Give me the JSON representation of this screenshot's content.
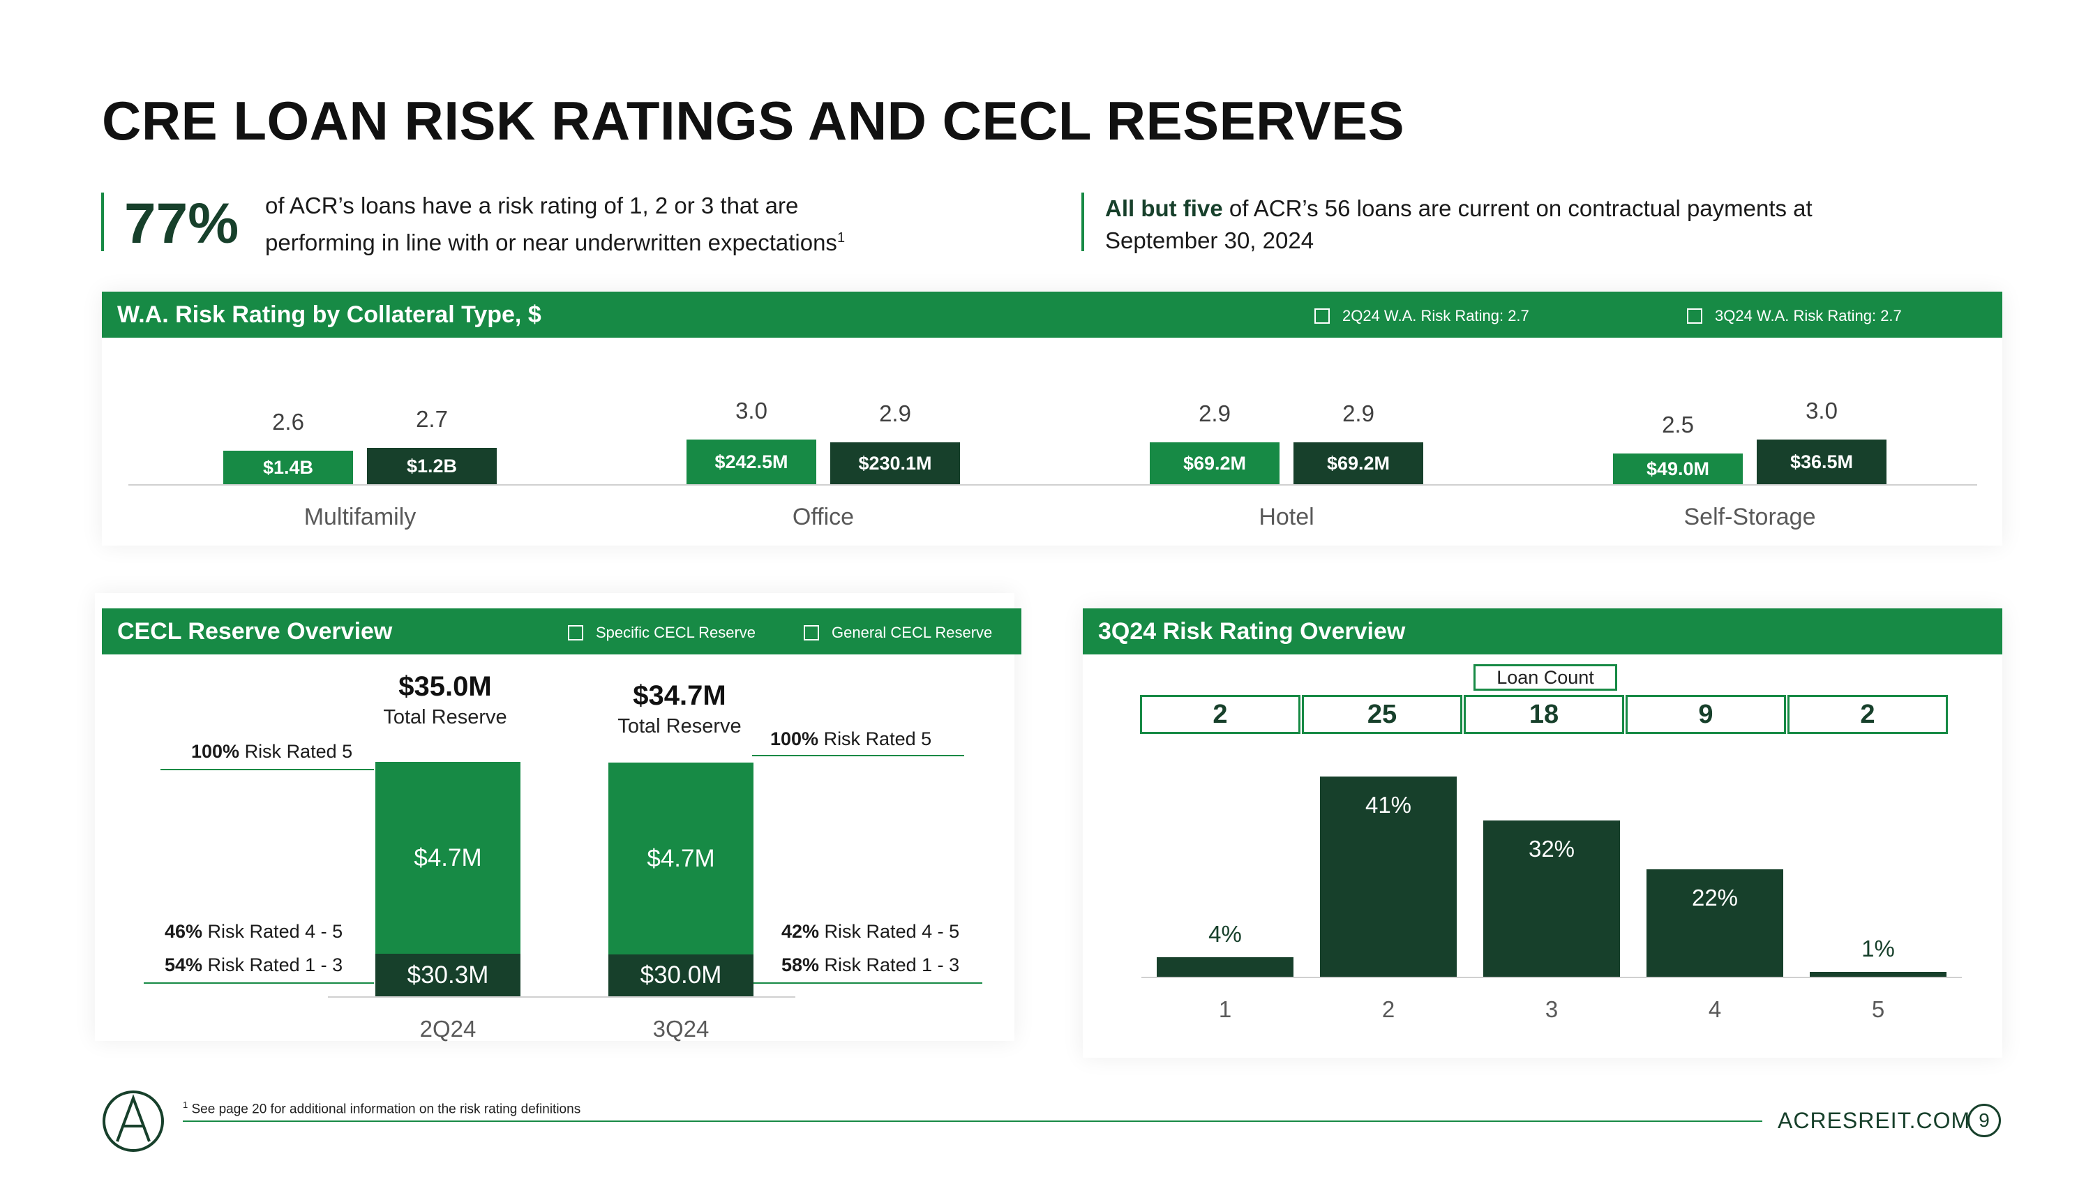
{
  "title": "CRE LOAN RISK RATINGS AND CECL RESERVES",
  "callout_left": {
    "pct": "77%",
    "line1": "of ACR’s loans have a risk rating of 1, 2 or 3 that are",
    "line2": "performing in line with or near underwritten expectations",
    "sup": "1"
  },
  "callout_right": {
    "bold": "All but five",
    "line1_rest": " of ACR’s 56 loans are current on contractual payments at",
    "line2": "September 30, 2024"
  },
  "wa_panel": {
    "title": "W.A. Risk Rating by Collateral Type, $",
    "legend": [
      "2Q24 W.A. Risk Rating: 2.7",
      "3Q24 W.A. Risk Rating: 2.7"
    ]
  },
  "cecl_panel": {
    "title": "CECL Reserve Overview",
    "legend": [
      "Specific CECL Reserve",
      "General CECL Reserve"
    ],
    "q2": {
      "total": "$35.0M",
      "total_label": "Total Reserve",
      "specific": "$4.7M",
      "general": "$30.3M",
      "note_top_bold": "100%",
      "note_top": " Risk Rated 5",
      "note_mid_bold": "46%",
      "note_mid": " Risk Rated 4 - 5",
      "note_bot_bold": "54%",
      "note_bot": " Risk Rated 1 - 3"
    },
    "q3": {
      "total": "$34.7M",
      "total_label": "Total Reserve",
      "specific": "$4.7M",
      "general": "$30.0M",
      "note_top_bold": "100%",
      "note_top": " Risk Rated 5",
      "note_mid_bold": "42%",
      "note_mid": " Risk Rated 4 - 5",
      "note_bot_bold": "58%",
      "note_bot": " Risk Rated 1 - 3"
    }
  },
  "rr_panel": {
    "title": "3Q24 Risk Rating Overview",
    "loan_count_label": "Loan Count"
  },
  "chart_data": [
    {
      "type": "bar",
      "title": "W.A. Risk Rating by Collateral Type, $",
      "categories": [
        "Multifamily",
        "Office",
        "Hotel",
        "Self-Storage"
      ],
      "series": [
        {
          "name": "2Q24",
          "risk_rating": [
            "2.6",
            "3.0",
            "2.9",
            "2.5"
          ],
          "amount": [
            "$1.4B",
            "$242.5M",
            "$69.2M",
            "$49.0M"
          ]
        },
        {
          "name": "3Q24",
          "risk_rating": [
            "2.7",
            "2.9",
            "2.9",
            "3.0"
          ],
          "amount": [
            "$1.2B",
            "$230.1M",
            "$69.2M",
            "$36.5M"
          ]
        }
      ]
    },
    {
      "type": "bar",
      "title": "CECL Reserve Overview",
      "stacked": true,
      "categories": [
        "2Q24",
        "3Q24"
      ],
      "series": [
        {
          "name": "General CECL Reserve",
          "values": [
            30.3,
            30.0
          ]
        },
        {
          "name": "Specific CECL Reserve",
          "values": [
            4.7,
            4.7
          ]
        }
      ],
      "totals": [
        35.0,
        34.7
      ]
    },
    {
      "type": "bar",
      "title": "3Q24 Risk Rating Overview",
      "categories": [
        "1",
        "2",
        "3",
        "4",
        "5"
      ],
      "values": [
        4,
        41,
        32,
        22,
        1
      ],
      "labels": [
        "4%",
        "41%",
        "32%",
        "22%",
        "1%"
      ],
      "loan_counts": [
        "2",
        "25",
        "18",
        "9",
        "2"
      ],
      "ylim": [
        0,
        45
      ]
    }
  ],
  "footer": {
    "footnote_sup": "1",
    "footnote": " See page 20 for additional information on the risk rating definitions",
    "site": "ACRESREIT.COM",
    "page": "9"
  },
  "colors": {
    "green": "#178a45",
    "dark_green": "#17402b"
  }
}
